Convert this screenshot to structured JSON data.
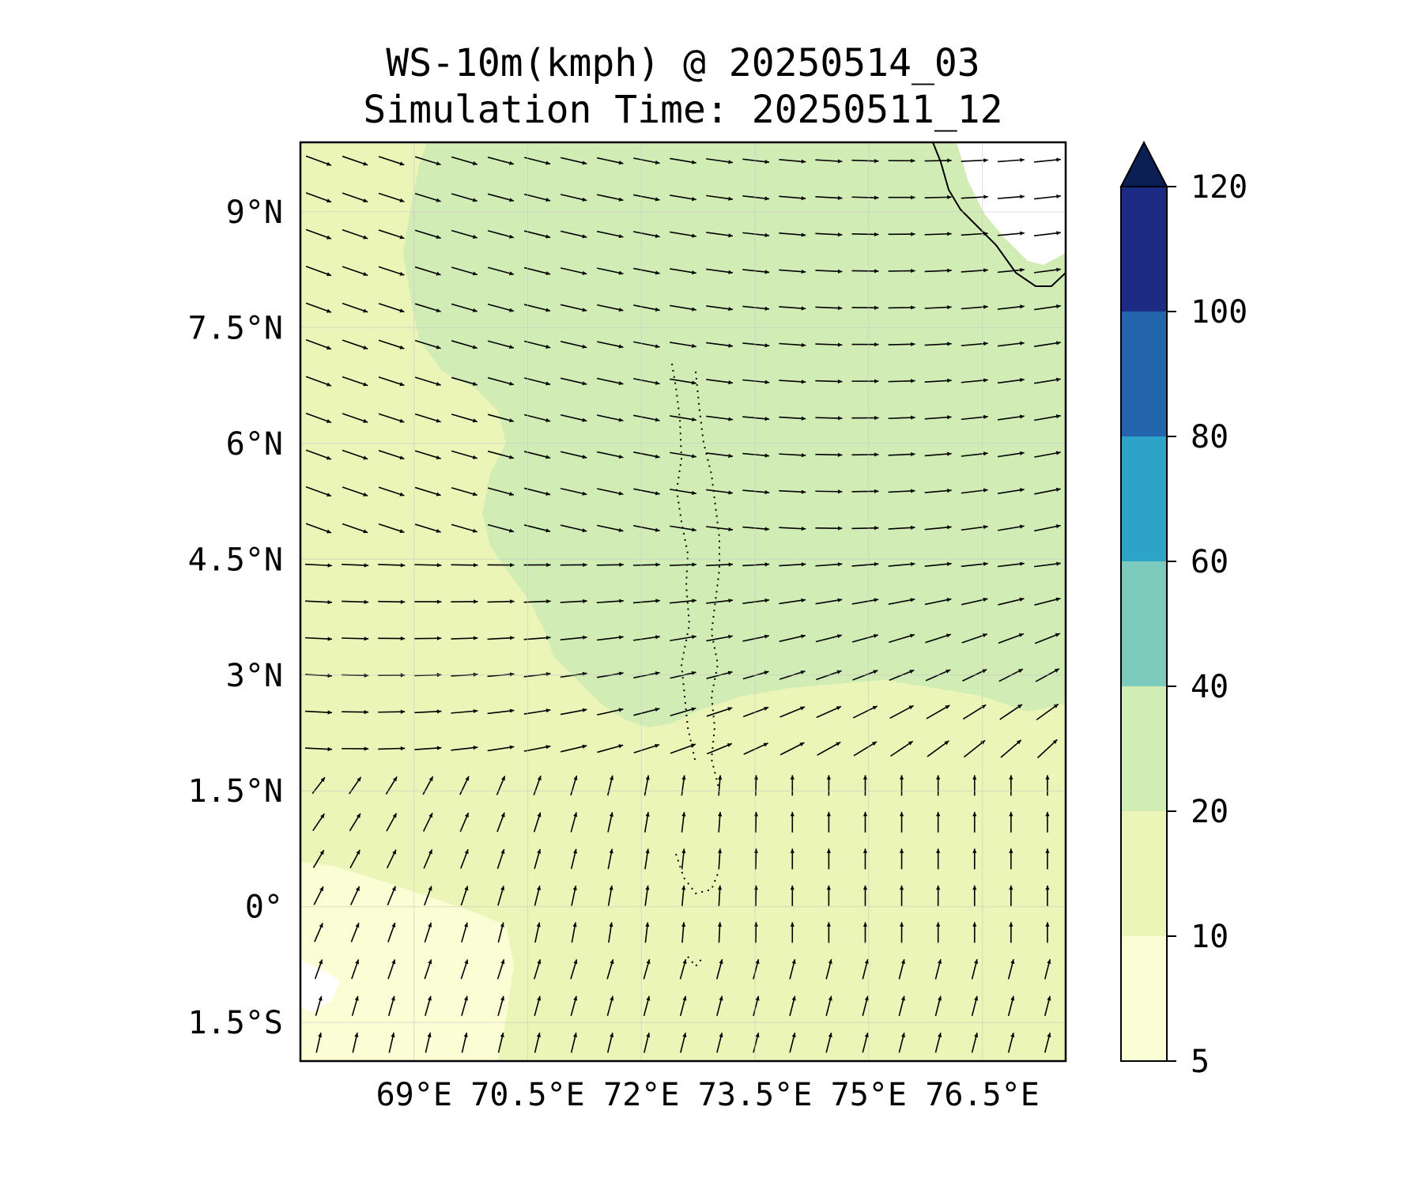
{
  "figure": {
    "title_line1": "WS-10m(kmph) @ 20250514_03",
    "title_line2": "Simulation Time: 20250511_12"
  },
  "map": {
    "lon_range": [
      67.5,
      77.6
    ],
    "lat_range": [
      -2.0,
      9.9
    ],
    "lon_ticks": [
      69,
      70.5,
      72,
      73.5,
      75,
      76.5
    ],
    "lat_ticks": [
      9,
      7.5,
      6,
      4.5,
      3,
      1.5,
      0,
      -1.5
    ],
    "lon_tick_labels": [
      "69°E",
      "70.5°E",
      "72°E",
      "73.5°E",
      "75°E",
      "76.5°E"
    ],
    "lat_tick_labels": [
      "9°N",
      "7.5°N",
      "6°N",
      "4.5°N",
      "3°N",
      "1.5°N",
      "0°",
      "1.5°S"
    ],
    "background_fill": "#eaf5b7",
    "stronger_wind_fill": "#d2ecb5",
    "weak_wind_fill": "#fbfdd4",
    "calm_fill": "#ffffff",
    "coastline_color": "#000000"
  },
  "colorbar": {
    "levels": [
      5,
      10,
      20,
      40,
      60,
      80,
      100,
      120
    ],
    "tick_labels": [
      "5",
      "10",
      "20",
      "40",
      "60",
      "80",
      "100",
      "120"
    ],
    "colors": [
      "#fbfdd4",
      "#eaf5b7",
      "#d2ecb5",
      "#7ccbbc",
      "#2ea3c8",
      "#2265ad",
      "#1d2b84"
    ],
    "extend_color": "#0b1f55",
    "extend": "max"
  }
}
